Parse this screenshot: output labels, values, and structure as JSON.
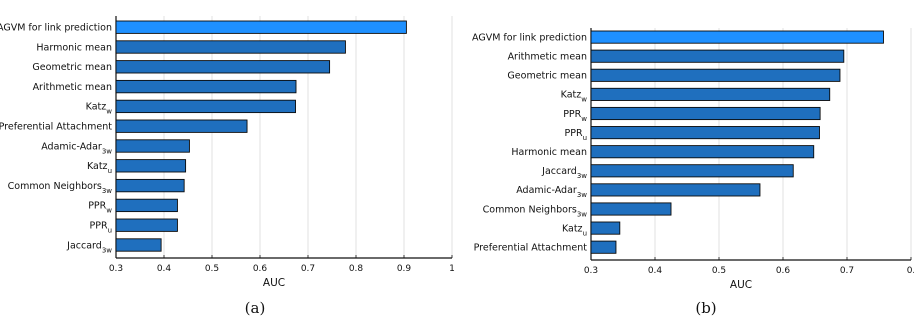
{
  "colors": {
    "bar": "#1f6fbe",
    "highlight": "#1e90ff",
    "edge": "#0a0a0a",
    "grid": "#d9d9d9"
  },
  "chart_data": [
    {
      "type": "bar",
      "orientation": "horizontal",
      "caption": "(a)",
      "xlabel": "AUC",
      "ylabel": "",
      "xlim": [
        0.3,
        1.0
      ],
      "xticks": [
        "0.3",
        "0.4",
        "0.5",
        "0.6",
        "0.7",
        "0.8",
        "0.9",
        "1"
      ],
      "grid": true,
      "categories": [
        {
          "label": "AGVM for link prediction",
          "sub": ""
        },
        {
          "label": "Harmonic mean",
          "sub": ""
        },
        {
          "label": "Geometric mean",
          "sub": ""
        },
        {
          "label": "Arithmetic mean",
          "sub": ""
        },
        {
          "label": "Katz",
          "sub": "w"
        },
        {
          "label": "Preferential Attachment",
          "sub": ""
        },
        {
          "label": "Adamic-Adar",
          "sub": "3w"
        },
        {
          "label": "Katz",
          "sub": "u"
        },
        {
          "label": "Common Neighbors",
          "sub": "3w"
        },
        {
          "label": "PPR",
          "sub": "w"
        },
        {
          "label": "PPR",
          "sub": "u"
        },
        {
          "label": "Jaccard",
          "sub": "3w"
        }
      ],
      "values": [
        0.905,
        0.778,
        0.745,
        0.675,
        0.674,
        0.573,
        0.453,
        0.445,
        0.442,
        0.428,
        0.428,
        0.394
      ],
      "highlight": [
        0
      ]
    },
    {
      "type": "bar",
      "orientation": "horizontal",
      "caption": "(b)",
      "xlabel": "AUC",
      "ylabel": "",
      "xlim": [
        0.3,
        0.8
      ],
      "xticks": [
        "0.3",
        "0.4",
        "0.5",
        "0.6",
        "0.7",
        "0."
      ],
      "grid": true,
      "categories": [
        {
          "label": "AGVM for link prediction",
          "sub": ""
        },
        {
          "label": "Arithmetic mean",
          "sub": ""
        },
        {
          "label": "Geometric mean",
          "sub": ""
        },
        {
          "label": "Katz",
          "sub": "w"
        },
        {
          "label": "PPR",
          "sub": "w"
        },
        {
          "label": "PPR",
          "sub": "u"
        },
        {
          "label": "Harmonic mean",
          "sub": ""
        },
        {
          "label": "Jaccard",
          "sub": "3w"
        },
        {
          "label": "Adamic-Adar",
          "sub": "3w"
        },
        {
          "label": "Common Neighbors",
          "sub": "3w"
        },
        {
          "label": "Katz",
          "sub": "u"
        },
        {
          "label": "Preferential Attachment",
          "sub": ""
        }
      ],
      "values": [
        0.757,
        0.695,
        0.689,
        0.673,
        0.658,
        0.657,
        0.648,
        0.616,
        0.564,
        0.425,
        0.345,
        0.339
      ],
      "highlight": [
        0
      ]
    }
  ]
}
